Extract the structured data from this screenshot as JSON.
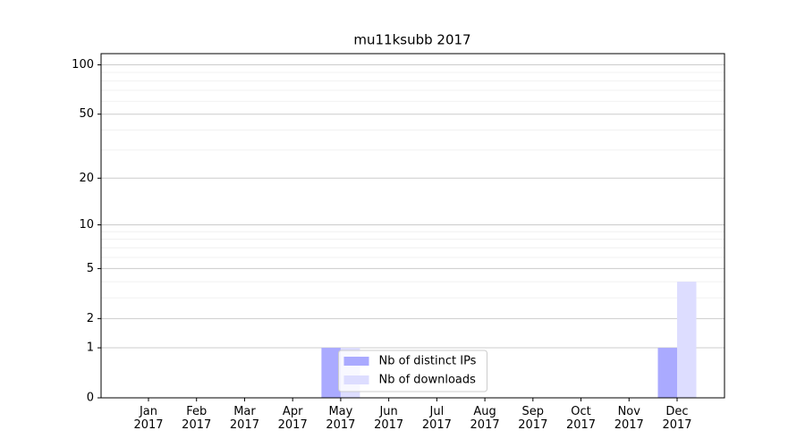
{
  "chart_data": {
    "type": "bar",
    "title": "mu11ksubb 2017",
    "categories": [
      "Jan 2017",
      "Feb 2017",
      "Mar 2017",
      "Apr 2017",
      "May 2017",
      "Jun 2017",
      "Jul 2017",
      "Aug 2017",
      "Sep 2017",
      "Oct 2017",
      "Nov 2017",
      "Dec 2017"
    ],
    "series": [
      {
        "name": "Nb of distinct IPs",
        "color": "#aaaaff",
        "values": [
          0,
          0,
          0,
          0,
          1,
          0,
          0,
          0,
          0,
          0,
          0,
          1
        ]
      },
      {
        "name": "Nb of downloads",
        "color": "#ddddff",
        "values": [
          0,
          0,
          0,
          0,
          1,
          0,
          0,
          0,
          0,
          0,
          0,
          4
        ]
      }
    ],
    "yscale": "log1p",
    "ylim": [
      0,
      117
    ],
    "yticks": [
      0,
      1,
      2,
      5,
      10,
      20,
      50,
      100
    ],
    "minor_yticks": [
      3,
      4,
      6,
      7,
      8,
      9,
      30,
      40,
      60,
      70,
      80,
      90
    ],
    "grid": true,
    "legend": "lower center"
  }
}
